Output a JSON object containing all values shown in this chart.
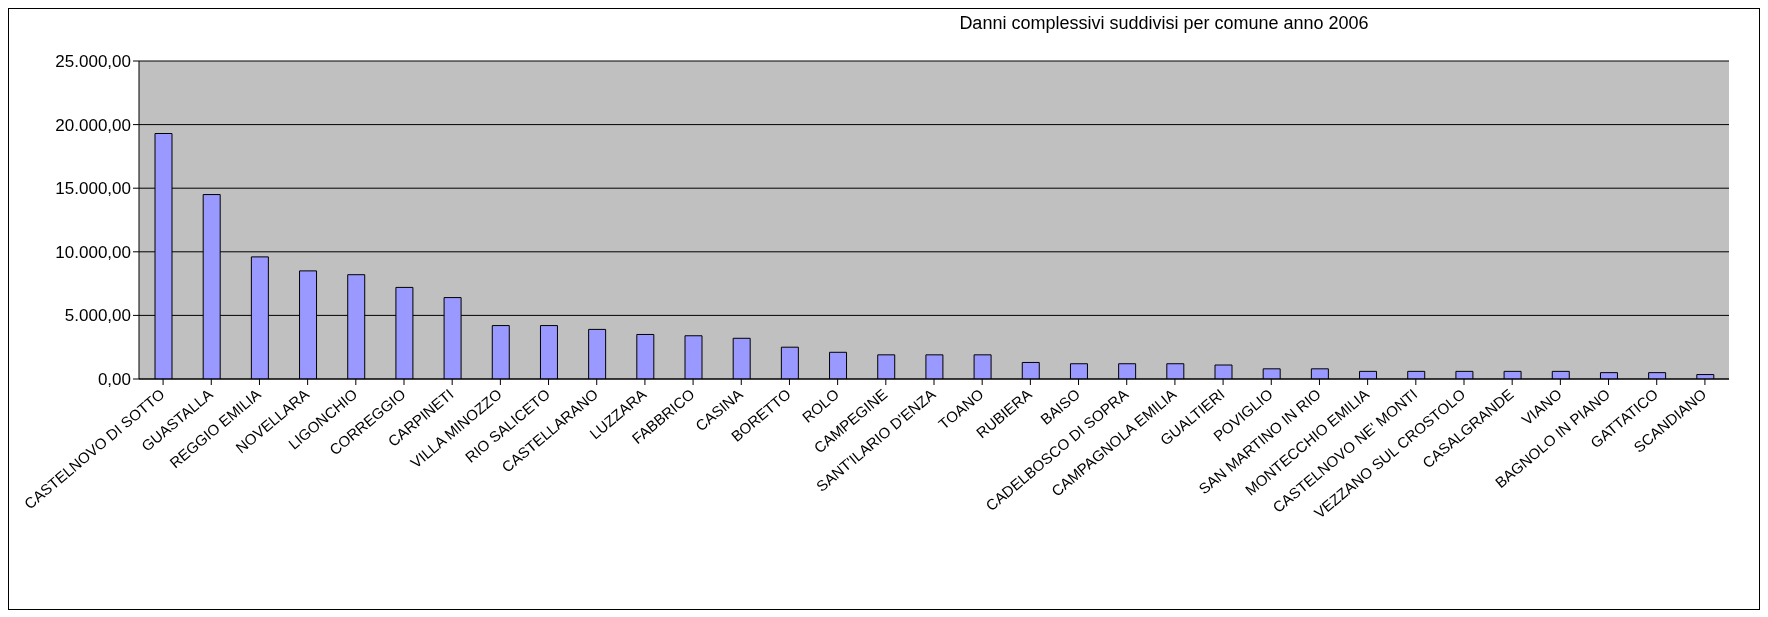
{
  "chart_data": {
    "type": "bar",
    "title": "Danni complessivi suddivisi per comune anno 2006",
    "categories": [
      "CASTELNOVO DI SOTTO",
      "GUASTALLA",
      "REGGIO EMILIA",
      "NOVELLARA",
      "LIGONCHIO",
      "CORREGGIO",
      "CARPINETI",
      "VILLA MINOZZO",
      "RIO SALICETO",
      "CASTELLARANO",
      "LUZZARA",
      "FABBRICO",
      "CASINA",
      "BORETTO",
      "ROLO",
      "CAMPEGINE",
      "SANT'ILARIO D'ENZA",
      "TOANO",
      "RUBIERA",
      "BAISO",
      "CADELBOSCO DI SOPRA",
      "CAMPAGNOLA EMILIA",
      "GUALTIERI",
      "POVIGLIO",
      "SAN MARTINO IN RIO",
      "MONTECCHIO EMILIA",
      "CASTELNOVO NE' MONTI",
      "VEZZANO SUL CROSTOLO",
      "CASALGRANDE",
      "VIANO",
      "BAGNOLO IN PIANO",
      "GATTATICO",
      "SCANDIANO"
    ],
    "values": [
      19300,
      14500,
      9600,
      8500,
      8200,
      7200,
      6400,
      4200,
      4200,
      3900,
      3500,
      3400,
      3200,
      2500,
      2100,
      1900,
      1900,
      1900,
      1300,
      1200,
      1200,
      1200,
      1100,
      800,
      800,
      600,
      600,
      600,
      600,
      600,
      500,
      500,
      350
    ],
    "color": "#9999ff",
    "ylim": [
      0,
      25000
    ],
    "yticks": [
      {
        "value": 0,
        "label": "0,00"
      },
      {
        "value": 5000,
        "label": "5.000,00"
      },
      {
        "value": 10000,
        "label": "10.000,00"
      },
      {
        "value": 15000,
        "label": "15.000,00"
      },
      {
        "value": 20000,
        "label": "20.000,00"
      },
      {
        "value": 25000,
        "label": "25.000,00"
      }
    ],
    "grid": "y"
  }
}
